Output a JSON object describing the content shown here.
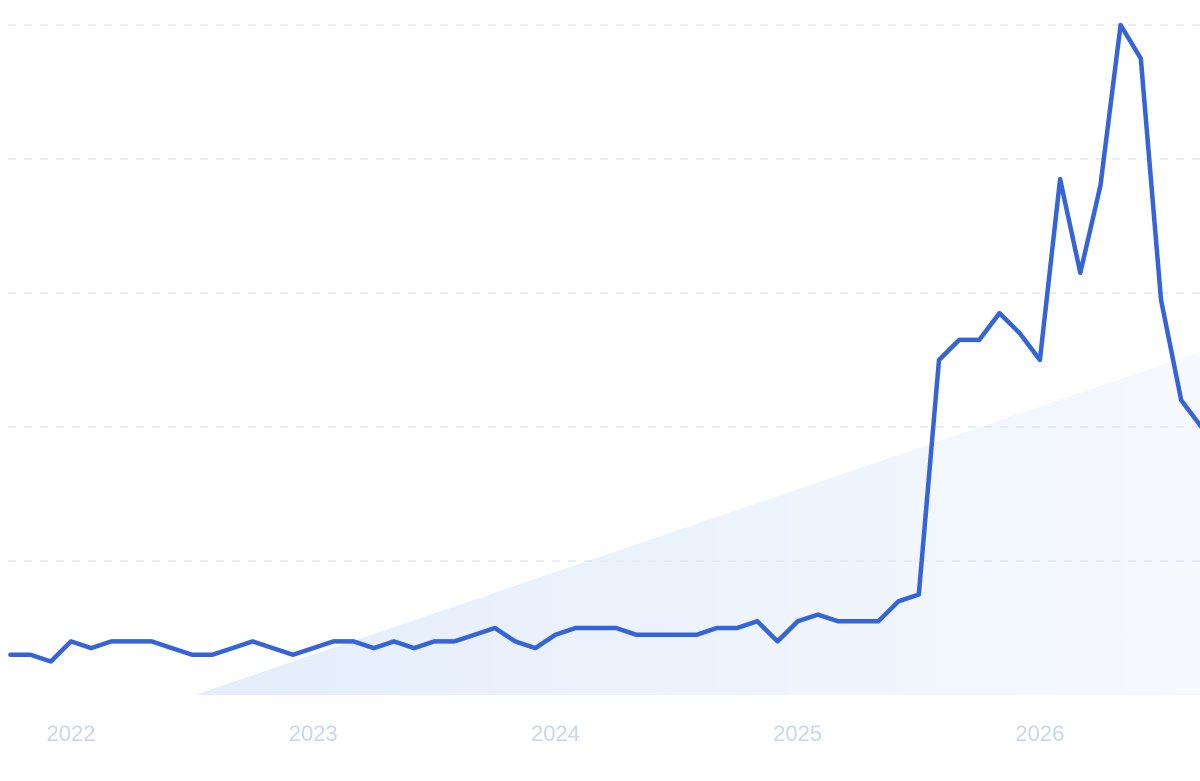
{
  "chart_data": {
    "type": "line",
    "x": [
      2021.75,
      2021.8333,
      2021.9167,
      2022.0,
      2022.0833,
      2022.1667,
      2022.25,
      2022.3333,
      2022.4167,
      2022.5,
      2022.5833,
      2022.6667,
      2022.75,
      2022.8333,
      2022.9167,
      2023.0,
      2023.0833,
      2023.1667,
      2023.25,
      2023.3333,
      2023.4167,
      2023.5,
      2023.5833,
      2023.6667,
      2023.75,
      2023.8333,
      2023.9167,
      2024.0,
      2024.0833,
      2024.1667,
      2024.25,
      2024.3333,
      2024.4167,
      2024.5,
      2024.5833,
      2024.6667,
      2024.75,
      2024.8333,
      2024.9167,
      2025.0,
      2025.0833,
      2025.1667,
      2025.25,
      2025.3333,
      2025.4167,
      2025.5,
      2025.5833,
      2025.6667,
      2025.75,
      2025.8333,
      2025.9167,
      2026.0,
      2026.0833,
      2026.1667,
      2026.25,
      2026.3333,
      2026.4167,
      2026.5,
      2026.5833,
      2026.6667
    ],
    "series": [
      {
        "color": "#3563d8",
        "values": [
          6,
          6,
          5,
          8,
          7,
          8,
          8,
          8,
          7,
          6,
          6,
          7,
          8,
          7,
          6,
          7,
          8,
          8,
          7,
          8,
          7,
          8,
          8,
          9,
          10,
          8,
          7,
          9,
          10,
          10,
          10,
          9,
          9,
          9,
          9,
          10,
          10,
          11,
          8,
          11,
          12,
          11,
          11,
          11,
          14,
          15,
          50,
          53,
          53,
          57,
          54,
          50,
          77,
          63,
          76,
          100,
          95,
          59,
          44,
          40
        ]
      }
    ],
    "xlim": [
      2021.707,
      2026.661
    ],
    "xticks": [
      2022,
      2023,
      2024,
      2025,
      2026
    ],
    "ylim": [
      0,
      100
    ],
    "yticks": [
      20,
      40,
      60,
      80,
      100
    ],
    "grid": true
  }
}
